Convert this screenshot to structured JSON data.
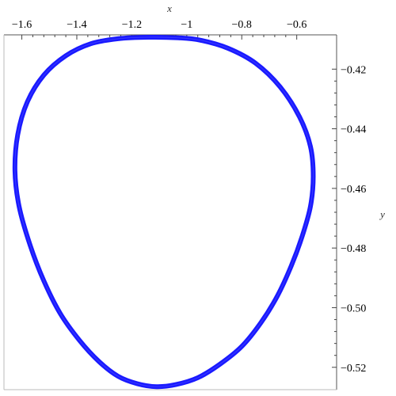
{
  "chart_data": {
    "type": "line",
    "title": "",
    "xlabel": "x",
    "ylabel": "y",
    "x_axis_position": "top",
    "y_axis_position": "right",
    "xlim": [
      -1.665,
      -0.455
    ],
    "ylim": [
      -0.5275,
      -0.4085
    ],
    "x_ticks": [
      {
        "value": -1.6,
        "label": "−1.6"
      },
      {
        "value": -1.4,
        "label": "−1.4"
      },
      {
        "value": -1.2,
        "label": "−1.2"
      },
      {
        "value": -1.0,
        "label": "−1"
      },
      {
        "value": -0.8,
        "label": "−0.8"
      },
      {
        "value": -0.6,
        "label": "−0.6"
      }
    ],
    "y_ticks": [
      {
        "value": -0.42,
        "label": "−0.42"
      },
      {
        "value": -0.44,
        "label": "−0.44"
      },
      {
        "value": -0.46,
        "label": "−0.46"
      },
      {
        "value": -0.48,
        "label": "−0.48"
      },
      {
        "value": -0.5,
        "label": "−0.50"
      },
      {
        "value": -0.52,
        "label": "−0.52"
      }
    ],
    "grid": false,
    "series": [
      {
        "color": "#1a1aff",
        "points": [
          [
            -1.03,
            -0.4095
          ],
          [
            -0.95,
            -0.4103
          ],
          [
            -0.85,
            -0.413
          ],
          [
            -0.75,
            -0.418
          ],
          [
            -0.66,
            -0.426
          ],
          [
            -0.59,
            -0.436
          ],
          [
            -0.55,
            -0.446
          ],
          [
            -0.54,
            -0.456
          ],
          [
            -0.55,
            -0.466
          ],
          [
            -0.58,
            -0.476
          ],
          [
            -0.62,
            -0.486
          ],
          [
            -0.67,
            -0.496
          ],
          [
            -0.73,
            -0.505
          ],
          [
            -0.8,
            -0.513
          ],
          [
            -0.88,
            -0.519
          ],
          [
            -0.96,
            -0.5235
          ],
          [
            -1.04,
            -0.5258
          ],
          [
            -1.11,
            -0.5265
          ],
          [
            -1.18,
            -0.5255
          ],
          [
            -1.25,
            -0.523
          ],
          [
            -1.32,
            -0.518
          ],
          [
            -1.39,
            -0.511
          ],
          [
            -1.46,
            -0.502
          ],
          [
            -1.52,
            -0.491
          ],
          [
            -1.57,
            -0.479
          ],
          [
            -1.61,
            -0.466
          ],
          [
            -1.625,
            -0.454
          ],
          [
            -1.615,
            -0.442
          ],
          [
            -1.58,
            -0.431
          ],
          [
            -1.52,
            -0.422
          ],
          [
            -1.44,
            -0.4155
          ],
          [
            -1.35,
            -0.4115
          ],
          [
            -1.25,
            -0.4098
          ],
          [
            -1.14,
            -0.4093
          ],
          [
            -1.03,
            -0.4095
          ]
        ]
      }
    ]
  }
}
